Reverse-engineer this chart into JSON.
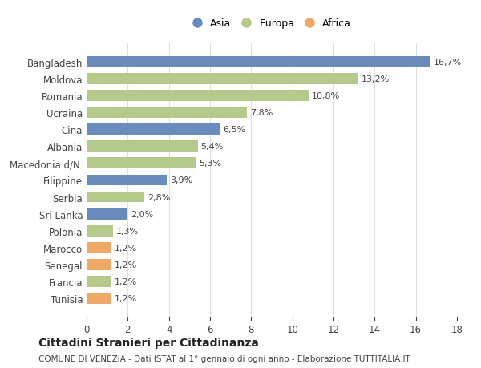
{
  "categories": [
    "Bangladesh",
    "Moldova",
    "Romania",
    "Ucraina",
    "Cina",
    "Albania",
    "Macedonia d/N.",
    "Filippine",
    "Serbia",
    "Sri Lanka",
    "Polonia",
    "Marocco",
    "Senegal",
    "Francia",
    "Tunisia"
  ],
  "values": [
    16.7,
    13.2,
    10.8,
    7.8,
    6.5,
    5.4,
    5.3,
    3.9,
    2.8,
    2.0,
    1.3,
    1.2,
    1.2,
    1.2,
    1.2
  ],
  "labels": [
    "16,7%",
    "13,2%",
    "10,8%",
    "7,8%",
    "6,5%",
    "5,4%",
    "5,3%",
    "3,9%",
    "2,8%",
    "2,0%",
    "1,3%",
    "1,2%",
    "1,2%",
    "1,2%",
    "1,2%"
  ],
  "continents": [
    "Asia",
    "Europa",
    "Europa",
    "Europa",
    "Asia",
    "Europa",
    "Europa",
    "Asia",
    "Europa",
    "Asia",
    "Europa",
    "Africa",
    "Africa",
    "Europa",
    "Africa"
  ],
  "colors": {
    "Asia": "#6a8cbc",
    "Europa": "#b5c98a",
    "Africa": "#f0a868"
  },
  "legend_labels": [
    "Asia",
    "Europa",
    "Africa"
  ],
  "title": "Cittadini Stranieri per Cittadinanza",
  "subtitle": "COMUNE DI VENEZIA - Dati ISTAT al 1° gennaio di ogni anno - Elaborazione TUTTITALIA.IT",
  "xlim": [
    0,
    18
  ],
  "xticks": [
    0,
    2,
    4,
    6,
    8,
    10,
    12,
    14,
    16,
    18
  ],
  "bg_color": "#ffffff",
  "grid_color": "#e0e0e0"
}
